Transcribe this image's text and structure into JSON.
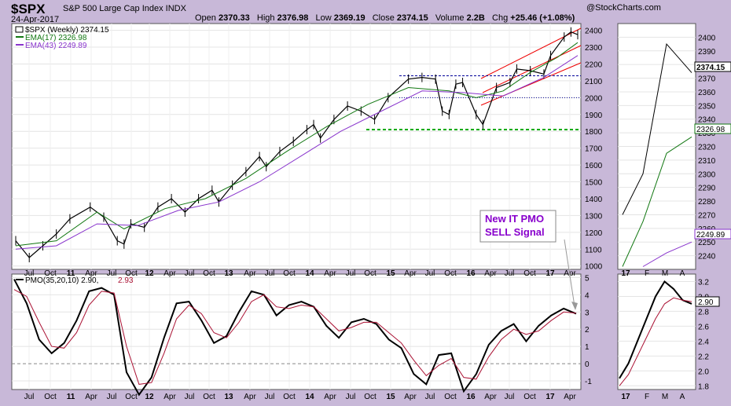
{
  "header": {
    "symbol": "$SPX",
    "description": "S&P 500 Large Cap Index  INDX",
    "date": "24-Apr-2017",
    "logo": "@StockCharts.com",
    "open_label": "Open",
    "open": "2370.33",
    "high_label": "High",
    "high": "2376.98",
    "low_label": "Low",
    "low": "2369.19",
    "close_label": "Close",
    "close": "2374.15",
    "volume_label": "Volume",
    "volume": "2.2B",
    "chg_label": "Chg",
    "chg": "+25.46 (+1.08%)"
  },
  "legend": {
    "price": "$SPX (Weekly) 2374.15",
    "ema17": "EMA(17) 2326.98",
    "ema43": "EMA(43) 2249.89",
    "pmo_prefix": "PMO(35,20,10) 2.90,",
    "pmo_signal": "2.93"
  },
  "annotation": {
    "line1": "New IT PMO",
    "line2": "SELL Signal"
  },
  "colors": {
    "background": "#c8b8d8",
    "panel": "#ffffff",
    "ema17": "#117711",
    "ema43": "#8833cc",
    "pmo": "#000000",
    "pmo_signal": "#aa1133",
    "channel": "#ee0000",
    "resistance": "#000099",
    "support": "#00aa00",
    "annotation_text": "#8800cc"
  },
  "price_badges": [
    "2374.15",
    "2326.98",
    "2249.89"
  ],
  "pmo_badge": "2.90",
  "chart_data": [
    {
      "type": "line",
      "panel": "weekly-price",
      "series": [
        {
          "name": "$SPX (Weekly)",
          "x": [
            "2010-05",
            "2010-07",
            "2010-09",
            "2010-11",
            "2011-01",
            "2011-04",
            "2011-06",
            "2011-08",
            "2011-09",
            "2011-10",
            "2011-12",
            "2012-02",
            "2012-04",
            "2012-06",
            "2012-08",
            "2012-10",
            "2012-11",
            "2013-01",
            "2013-03",
            "2013-05",
            "2013-06",
            "2013-08",
            "2013-10",
            "2013-12",
            "2014-01",
            "2014-02",
            "2014-04",
            "2014-06",
            "2014-08",
            "2014-10",
            "2014-12",
            "2015-03",
            "2015-05",
            "2015-07",
            "2015-08",
            "2015-09",
            "2015-10",
            "2015-11",
            "2016-01",
            "2016-02",
            "2016-04",
            "2016-06",
            "2016-07",
            "2016-09",
            "2016-11",
            "2016-12",
            "2017-02",
            "2017-03",
            "2017-04"
          ],
          "values": [
            1150,
            1050,
            1120,
            1190,
            1280,
            1350,
            1290,
            1150,
            1130,
            1250,
            1230,
            1350,
            1400,
            1320,
            1400,
            1450,
            1380,
            1480,
            1560,
            1650,
            1590,
            1680,
            1740,
            1810,
            1840,
            1760,
            1870,
            1950,
            1920,
            1870,
            2000,
            2110,
            2120,
            2110,
            1920,
            1900,
            2080,
            2090,
            1900,
            1840,
            2060,
            2090,
            2170,
            2160,
            2140,
            2250,
            2360,
            2390,
            2374
          ]
        },
        {
          "name": "EMA(17)",
          "x": [
            "2010-05",
            "2010-11",
            "2011-05",
            "2011-09",
            "2012-03",
            "2012-09",
            "2013-03",
            "2013-09",
            "2014-03",
            "2014-09",
            "2015-03",
            "2015-09",
            "2016-01",
            "2016-05",
            "2016-09",
            "2017-01",
            "2017-04"
          ],
          "values": [
            1120,
            1150,
            1320,
            1220,
            1340,
            1400,
            1520,
            1680,
            1830,
            1960,
            2060,
            2040,
            2000,
            2040,
            2150,
            2240,
            2327
          ]
        },
        {
          "name": "EMA(43)",
          "x": [
            "2010-05",
            "2010-11",
            "2011-05",
            "2011-11",
            "2012-05",
            "2012-11",
            "2013-05",
            "2013-11",
            "2014-05",
            "2014-11",
            "2015-05",
            "2015-11",
            "2016-05",
            "2016-11",
            "2017-04"
          ],
          "values": [
            1100,
            1120,
            1250,
            1240,
            1330,
            1380,
            1500,
            1650,
            1800,
            1920,
            2040,
            2030,
            2010,
            2120,
            2250
          ]
        }
      ],
      "ylim": [
        980,
        2440
      ],
      "yticks": [
        1000,
        1100,
        1200,
        1300,
        1400,
        1500,
        1600,
        1700,
        1800,
        1900,
        2000,
        2100,
        2200,
        2300,
        2400
      ],
      "xlabels": [
        "Jul",
        "Oct",
        "11",
        "Apr",
        "Jul",
        "Oct",
        "12",
        "Apr",
        "Jul",
        "Oct",
        "13",
        "Apr",
        "Jul",
        "Oct",
        "14",
        "Apr",
        "Jul",
        "Oct",
        "15",
        "Apr",
        "Jul",
        "Oct",
        "16",
        "Apr",
        "Jul",
        "Oct",
        "17",
        "Apr"
      ],
      "horizontal_lines": [
        {
          "name": "resistance",
          "y": 2130,
          "style": "dashed"
        },
        {
          "name": "support-dotted",
          "y": 2000,
          "style": "dotted"
        },
        {
          "name": "support",
          "y": 1810,
          "style": "dashed"
        }
      ]
    },
    {
      "type": "line",
      "panel": "weekly-pmo",
      "series": [
        {
          "name": "PMO",
          "values": [
            4.9,
            3.5,
            1.4,
            0.6,
            1.2,
            2.5,
            4.2,
            4.4,
            4.0,
            -0.5,
            -1.8,
            -0.8,
            1.5,
            3.5,
            3.6,
            2.5,
            1.2,
            1.6,
            3.0,
            4.2,
            4.0,
            2.8,
            3.4,
            3.6,
            3.3,
            2.2,
            1.5,
            2.4,
            2.6,
            2.3,
            1.4,
            0.9,
            -0.6,
            -1.2,
            0.5,
            0.6,
            -1.6,
            -0.6,
            1.1,
            1.9,
            2.3,
            1.3,
            2.2,
            2.8,
            3.2,
            2.9
          ]
        },
        {
          "name": "Signal",
          "values": [
            4.3,
            3.9,
            2.4,
            1.0,
            0.9,
            1.8,
            3.4,
            4.2,
            4.1,
            1.0,
            -1.2,
            -1.1,
            0.6,
            2.6,
            3.4,
            2.9,
            1.8,
            1.5,
            2.4,
            3.6,
            4.0,
            3.3,
            3.2,
            3.4,
            3.3,
            2.6,
            1.9,
            2.1,
            2.4,
            2.4,
            1.8,
            1.2,
            0.2,
            -0.7,
            -0.1,
            0.3,
            -0.8,
            -0.9,
            0.4,
            1.4,
            2.0,
            1.7,
            1.9,
            2.5,
            3.0,
            2.93
          ]
        }
      ],
      "ylim": [
        -1.5,
        5.2
      ],
      "yticks": [
        -1,
        0,
        1,
        2,
        3,
        4,
        5
      ]
    },
    {
      "type": "line",
      "panel": "daily-price",
      "series": [
        {
          "name": "$SPX (Daily)",
          "x": [
            "17-Jan",
            "F",
            "M",
            "A"
          ],
          "values": [
            2270,
            2300,
            2395,
            2374
          ]
        },
        {
          "name": "EMA(17)",
          "x": [
            "17-Jan",
            "F",
            "M",
            "A"
          ],
          "values": [
            2232,
            2265,
            2315,
            2327
          ]
        },
        {
          "name": "EMA(43)",
          "x": [
            "F",
            "M",
            "A"
          ],
          "values": [
            2232,
            2242,
            2250
          ]
        }
      ],
      "ylim": [
        2230,
        2410
      ],
      "yticks": [
        2240,
        2250,
        2260,
        2270,
        2280,
        2290,
        2300,
        2310,
        2320,
        2330,
        2340,
        2350,
        2360,
        2370,
        2380,
        2390,
        2400
      ],
      "xlabels": [
        "17",
        "F",
        "M",
        "A"
      ]
    },
    {
      "type": "line",
      "panel": "daily-pmo",
      "series": [
        {
          "name": "PMO",
          "values": [
            1.9,
            2.1,
            2.4,
            2.7,
            3.0,
            3.2,
            3.1,
            2.95,
            2.9
          ]
        },
        {
          "name": "Signal",
          "values": [
            1.8,
            1.95,
            2.2,
            2.45,
            2.7,
            2.9,
            2.98,
            2.95,
            2.93
          ]
        }
      ],
      "ylim": [
        1.75,
        3.3
      ],
      "yticks": [
        1.8,
        2.0,
        2.2,
        2.4,
        2.6,
        2.8,
        3.0,
        3.2
      ]
    }
  ]
}
